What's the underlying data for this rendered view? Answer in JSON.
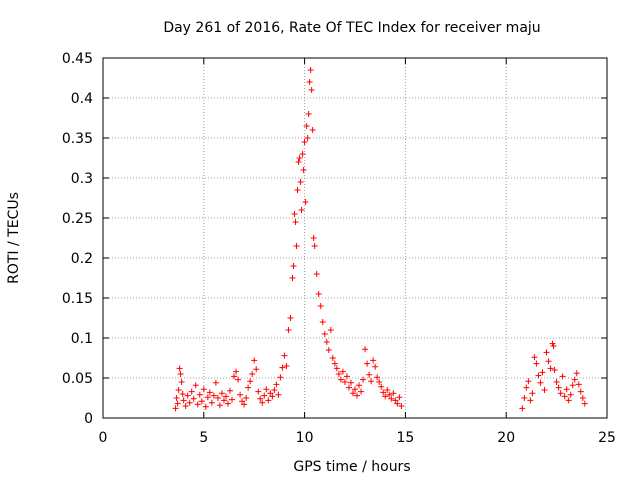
{
  "chart_data": {
    "type": "scatter",
    "title": "Day 261 of 2016, Rate Of TEC Index for receiver maju",
    "xlabel": "GPS time / hours",
    "ylabel": "ROTI / TECUs",
    "xlim": [
      0,
      25
    ],
    "ylim": [
      0,
      0.45
    ],
    "xticks": [
      0,
      5,
      10,
      15,
      20,
      25
    ],
    "xtick_labels": [
      "0",
      "5",
      "10",
      "15",
      "20",
      "25"
    ],
    "yticks": [
      0,
      0.05,
      0.1,
      0.15,
      0.2,
      0.25,
      0.3,
      0.35,
      0.4,
      0.45
    ],
    "ytick_labels": [
      "0",
      "0.05",
      "0.1",
      "0.15",
      "0.2",
      "0.25",
      "0.3",
      "0.35",
      "0.4",
      "0.45"
    ],
    "grid": true,
    "marker": "+",
    "color": "#ff0000",
    "series": [
      {
        "name": "ROTI",
        "points": [
          [
            3.6,
            0.012
          ],
          [
            3.65,
            0.025
          ],
          [
            3.7,
            0.018
          ],
          [
            3.75,
            0.035
          ],
          [
            3.8,
            0.062
          ],
          [
            3.85,
            0.055
          ],
          [
            3.9,
            0.045
          ],
          [
            3.95,
            0.03
          ],
          [
            4.0,
            0.022
          ],
          [
            4.1,
            0.015
          ],
          [
            4.2,
            0.028
          ],
          [
            4.3,
            0.019
          ],
          [
            4.4,
            0.033
          ],
          [
            4.5,
            0.024
          ],
          [
            4.6,
            0.041
          ],
          [
            4.7,
            0.017
          ],
          [
            4.8,
            0.029
          ],
          [
            4.9,
            0.021
          ],
          [
            5.0,
            0.036
          ],
          [
            5.1,
            0.014
          ],
          [
            5.2,
            0.026
          ],
          [
            5.3,
            0.032
          ],
          [
            5.4,
            0.019
          ],
          [
            5.5,
            0.028
          ],
          [
            5.6,
            0.044
          ],
          [
            5.7,
            0.025
          ],
          [
            5.8,
            0.016
          ],
          [
            5.9,
            0.031
          ],
          [
            6.0,
            0.022
          ],
          [
            6.1,
            0.027
          ],
          [
            6.2,
            0.018
          ],
          [
            6.3,
            0.034
          ],
          [
            6.4,
            0.023
          ],
          [
            6.5,
            0.052
          ],
          [
            6.6,
            0.058
          ],
          [
            6.7,
            0.048
          ],
          [
            6.8,
            0.029
          ],
          [
            6.9,
            0.021
          ],
          [
            7.0,
            0.017
          ],
          [
            7.1,
            0.025
          ],
          [
            7.2,
            0.038
          ],
          [
            7.3,
            0.046
          ],
          [
            7.4,
            0.055
          ],
          [
            7.5,
            0.072
          ],
          [
            7.6,
            0.061
          ],
          [
            7.7,
            0.033
          ],
          [
            7.8,
            0.024
          ],
          [
            7.9,
            0.019
          ],
          [
            8.0,
            0.028
          ],
          [
            8.1,
            0.036
          ],
          [
            8.2,
            0.022
          ],
          [
            8.3,
            0.031
          ],
          [
            8.4,
            0.027
          ],
          [
            8.5,
            0.035
          ],
          [
            8.6,
            0.042
          ],
          [
            8.7,
            0.029
          ],
          [
            8.8,
            0.051
          ],
          [
            8.9,
            0.063
          ],
          [
            9.0,
            0.078
          ],
          [
            9.1,
            0.065
          ],
          [
            9.2,
            0.11
          ],
          [
            9.3,
            0.125
          ],
          [
            9.4,
            0.175
          ],
          [
            9.45,
            0.19
          ],
          [
            9.5,
            0.255
          ],
          [
            9.55,
            0.245
          ],
          [
            9.6,
            0.215
          ],
          [
            9.65,
            0.285
          ],
          [
            9.7,
            0.32
          ],
          [
            9.75,
            0.325
          ],
          [
            9.8,
            0.295
          ],
          [
            9.85,
            0.26
          ],
          [
            9.9,
            0.33
          ],
          [
            9.95,
            0.31
          ],
          [
            10.0,
            0.345
          ],
          [
            10.05,
            0.27
          ],
          [
            10.1,
            0.365
          ],
          [
            10.15,
            0.35
          ],
          [
            10.2,
            0.38
          ],
          [
            10.25,
            0.42
          ],
          [
            10.3,
            0.435
          ],
          [
            10.35,
            0.41
          ],
          [
            10.4,
            0.36
          ],
          [
            10.45,
            0.225
          ],
          [
            10.5,
            0.215
          ],
          [
            10.6,
            0.18
          ],
          [
            10.7,
            0.155
          ],
          [
            10.8,
            0.14
          ],
          [
            10.9,
            0.12
          ],
          [
            11.0,
            0.105
          ],
          [
            11.1,
            0.095
          ],
          [
            11.2,
            0.085
          ],
          [
            11.3,
            0.11
          ],
          [
            11.4,
            0.075
          ],
          [
            11.5,
            0.068
          ],
          [
            11.6,
            0.062
          ],
          [
            11.7,
            0.055
          ],
          [
            11.8,
            0.048
          ],
          [
            11.9,
            0.058
          ],
          [
            12.0,
            0.045
          ],
          [
            12.1,
            0.052
          ],
          [
            12.2,
            0.038
          ],
          [
            12.3,
            0.044
          ],
          [
            12.4,
            0.031
          ],
          [
            12.5,
            0.036
          ],
          [
            12.6,
            0.028
          ],
          [
            12.7,
            0.041
          ],
          [
            12.8,
            0.033
          ],
          [
            12.9,
            0.048
          ],
          [
            13.0,
            0.086
          ],
          [
            13.1,
            0.068
          ],
          [
            13.2,
            0.054
          ],
          [
            13.3,
            0.046
          ],
          [
            13.4,
            0.072
          ],
          [
            13.5,
            0.064
          ],
          [
            13.6,
            0.051
          ],
          [
            13.7,
            0.045
          ],
          [
            13.8,
            0.039
          ],
          [
            13.9,
            0.032
          ],
          [
            14.0,
            0.027
          ],
          [
            14.1,
            0.035
          ],
          [
            14.2,
            0.029
          ],
          [
            14.3,
            0.024
          ],
          [
            14.4,
            0.031
          ],
          [
            14.5,
            0.022
          ],
          [
            14.6,
            0.018
          ],
          [
            14.7,
            0.026
          ],
          [
            14.8,
            0.015
          ],
          [
            20.8,
            0.012
          ],
          [
            20.9,
            0.025
          ],
          [
            21.0,
            0.038
          ],
          [
            21.1,
            0.046
          ],
          [
            21.2,
            0.022
          ],
          [
            21.3,
            0.031
          ],
          [
            21.4,
            0.076
          ],
          [
            21.5,
            0.068
          ],
          [
            21.6,
            0.053
          ],
          [
            21.7,
            0.044
          ],
          [
            21.8,
            0.057
          ],
          [
            21.9,
            0.035
          ],
          [
            22.0,
            0.082
          ],
          [
            22.1,
            0.071
          ],
          [
            22.2,
            0.062
          ],
          [
            22.3,
            0.093
          ],
          [
            22.35,
            0.09
          ],
          [
            22.4,
            0.06
          ],
          [
            22.5,
            0.045
          ],
          [
            22.6,
            0.038
          ],
          [
            22.7,
            0.031
          ],
          [
            22.8,
            0.052
          ],
          [
            22.9,
            0.027
          ],
          [
            23.0,
            0.036
          ],
          [
            23.1,
            0.022
          ],
          [
            23.2,
            0.029
          ],
          [
            23.3,
            0.041
          ],
          [
            23.4,
            0.048
          ],
          [
            23.5,
            0.056
          ],
          [
            23.6,
            0.042
          ],
          [
            23.7,
            0.033
          ],
          [
            23.8,
            0.025
          ],
          [
            23.9,
            0.018
          ]
        ]
      }
    ]
  }
}
